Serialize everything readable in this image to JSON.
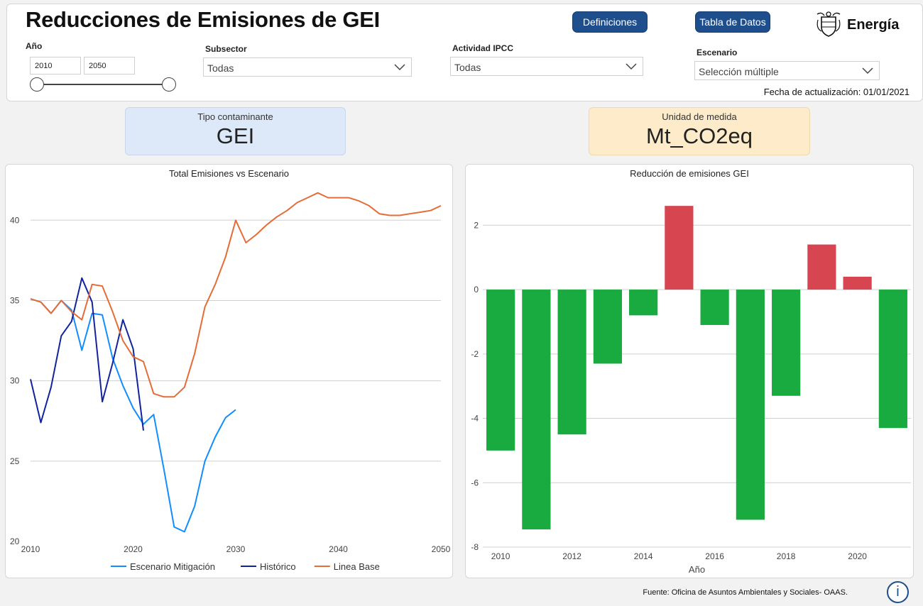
{
  "header": {
    "title": "Reducciones de Emisiones de GEI",
    "definiciones_label": "Definiciones",
    "tabla_label": "Tabla de Datos",
    "logo_text": "Energía",
    "update_date": "Fecha de actualización: 01/01/2021"
  },
  "filters": {
    "anio": {
      "label": "Año",
      "from": "2010",
      "to": "2050"
    },
    "subsector": {
      "label": "Subsector",
      "value": "Todas"
    },
    "actividad": {
      "label": "Actividad IPCC",
      "value": "Todas"
    },
    "escenario": {
      "label": "Escenario",
      "value": "Selección múltiple"
    }
  },
  "cards": {
    "contaminante": {
      "label": "Tipo contaminante",
      "value": "GEI",
      "bg": "#dde9f8"
    },
    "unidad": {
      "label": "Unidad de medida",
      "value": "Mt_CO2eq",
      "bg": "#fdebc9"
    }
  },
  "footer": {
    "source": "Fuente: Oficina de Asuntos Ambientales y Sociales- OAAS.",
    "info_icon": "info-icon"
  },
  "chart_data": [
    {
      "type": "line",
      "title": "Total Emisiones vs Escenario",
      "xlim": [
        2010,
        2050
      ],
      "ylim": [
        20,
        42
      ],
      "xticks": [
        2010,
        2020,
        2030,
        2040,
        2050
      ],
      "yticks": [
        20,
        25,
        30,
        35,
        40
      ],
      "grid": true,
      "legend_position": "bottom",
      "series": [
        {
          "name": "Escenario Mitigación",
          "color": "#118dff",
          "x": [
            2010,
            2011,
            2012,
            2013,
            2014,
            2015,
            2016,
            2017,
            2018,
            2019,
            2020,
            2021,
            2022,
            2023,
            2024,
            2025,
            2026,
            2027,
            2028,
            2029,
            2030
          ],
          "y": [
            35.1,
            34.9,
            34.2,
            35.0,
            34.4,
            31.9,
            34.2,
            34.1,
            31.4,
            29.7,
            28.3,
            27.3,
            27.9,
            24.5,
            20.9,
            20.6,
            22.2,
            25.0,
            26.5,
            27.7,
            28.2
          ]
        },
        {
          "name": "Histórico",
          "color": "#12239e",
          "x": [
            2010,
            2011,
            2012,
            2013,
            2014,
            2015,
            2016,
            2017,
            2018,
            2019,
            2020,
            2021
          ],
          "y": [
            30.1,
            27.4,
            29.6,
            32.8,
            33.7,
            36.4,
            34.9,
            28.7,
            31.1,
            33.8,
            32.0,
            26.9
          ]
        },
        {
          "name": "Linea Base",
          "color": "#e66c37",
          "x": [
            2010,
            2011,
            2012,
            2013,
            2014,
            2015,
            2016,
            2017,
            2018,
            2019,
            2020,
            2021,
            2022,
            2023,
            2024,
            2025,
            2026,
            2027,
            2028,
            2029,
            2030,
            2031,
            2032,
            2033,
            2034,
            2035,
            2036,
            2037,
            2038,
            2039,
            2040,
            2041,
            2042,
            2043,
            2044,
            2045,
            2046,
            2047,
            2048,
            2049,
            2050
          ],
          "y": [
            35.1,
            34.9,
            34.2,
            35.0,
            34.3,
            33.8,
            36.0,
            35.9,
            34.3,
            32.5,
            31.5,
            31.2,
            29.2,
            29.0,
            29.0,
            29.6,
            31.7,
            34.6,
            36.0,
            37.7,
            40.0,
            38.6,
            39.1,
            39.7,
            40.2,
            40.6,
            41.1,
            41.4,
            41.7,
            41.4,
            41.4,
            41.4,
            41.2,
            40.9,
            40.4,
            40.3,
            40.3,
            40.4,
            40.5,
            40.6,
            40.9
          ]
        }
      ]
    },
    {
      "type": "bar",
      "title": "Reducción de emisiones GEI",
      "xlabel": "Año",
      "categories": [
        2010,
        2011,
        2012,
        2013,
        2014,
        2015,
        2016,
        2017,
        2018,
        2019,
        2020,
        2021
      ],
      "values": [
        -5.0,
        -7.45,
        -4.5,
        -2.3,
        -0.8,
        2.6,
        -1.1,
        -7.15,
        -3.3,
        1.4,
        0.4,
        -4.3
      ],
      "xticks": [
        2010,
        2012,
        2014,
        2016,
        2018,
        2020
      ],
      "ylim": [
        -8,
        3
      ],
      "yticks": [
        -8,
        -6,
        -4,
        -2,
        0,
        2
      ],
      "grid": true,
      "colors": {
        "negative": "#1aab40",
        "positive": "#d64550"
      }
    }
  ]
}
